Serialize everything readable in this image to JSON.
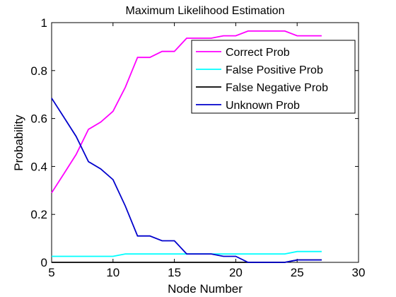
{
  "chart_data": {
    "type": "line",
    "title": "Maximum Likelihood Estimation",
    "xlabel": "Node Number",
    "ylabel": "Probability",
    "xlim": [
      5,
      30
    ],
    "ylim": [
      0,
      1
    ],
    "xticks": [
      5,
      10,
      15,
      20,
      25,
      30
    ],
    "yticks": [
      0,
      0.2,
      0.4,
      0.6,
      0.8,
      1
    ],
    "xtick_labels": [
      "5",
      "10",
      "15",
      "20",
      "25",
      "30"
    ],
    "ytick_labels": [
      "0",
      "0.2",
      "0.4",
      "0.6",
      "0.8",
      "1"
    ],
    "grid": false,
    "legend_position": "top-right",
    "x": [
      5,
      6,
      7,
      8,
      9,
      10,
      11,
      12,
      13,
      14,
      15,
      16,
      17,
      18,
      19,
      20,
      21,
      22,
      23,
      24,
      25,
      26,
      27
    ],
    "series": [
      {
        "name": "Correct Prob",
        "color": "#ff00ff",
        "values": [
          0.29,
          0.37,
          0.45,
          0.555,
          0.585,
          0.63,
          0.73,
          0.855,
          0.855,
          0.88,
          0.88,
          0.935,
          0.935,
          0.935,
          0.945,
          0.945,
          0.965,
          0.965,
          0.965,
          0.965,
          0.945,
          0.945,
          0.945
        ]
      },
      {
        "name": "False Positive Prob",
        "color": "#00ffff",
        "values": [
          0.025,
          0.025,
          0.025,
          0.025,
          0.025,
          0.025,
          0.035,
          0.035,
          0.035,
          0.035,
          0.035,
          0.035,
          0.035,
          0.035,
          0.035,
          0.035,
          0.035,
          0.035,
          0.035,
          0.035,
          0.045,
          0.045,
          0.045
        ]
      },
      {
        "name": "False Negative Prob",
        "color": "#000000",
        "values": [
          0,
          0,
          0,
          0,
          0,
          0,
          0,
          0,
          0,
          0,
          0,
          0,
          0,
          0,
          0,
          0,
          0,
          0,
          0,
          0,
          0.01,
          0.01,
          0.01
        ]
      },
      {
        "name": "Unknown Prob",
        "color": "#0000cc",
        "values": [
          0.685,
          0.605,
          0.525,
          0.42,
          0.39,
          0.345,
          0.235,
          0.11,
          0.11,
          0.09,
          0.09,
          0.035,
          0.035,
          0.035,
          0.025,
          0.025,
          0,
          0,
          0,
          0,
          0.01,
          0.01,
          0.01
        ]
      }
    ]
  }
}
